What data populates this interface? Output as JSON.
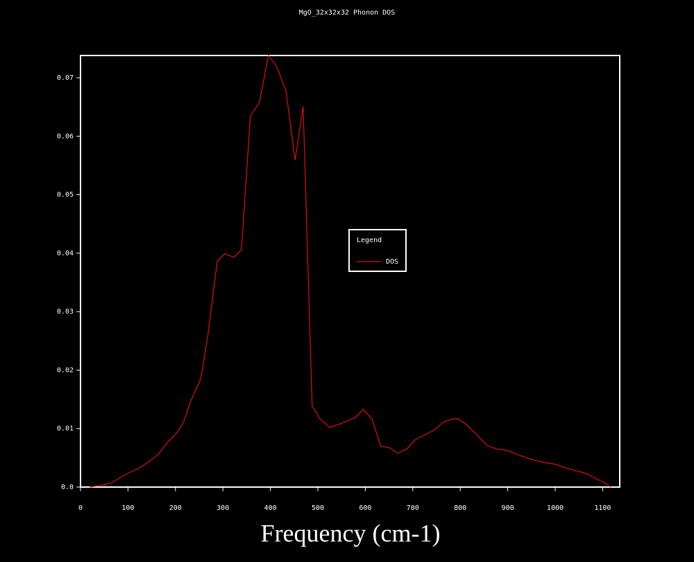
{
  "chart_data": {
    "type": "line",
    "title": "MgO_32x32x32 Phonon DOS",
    "x_label": "Frequency (cm-1)",
    "legend_title": "Legend",
    "legend_position": "center",
    "xlim": [
      0,
      1136
    ],
    "ylim": [
      0,
      0.0738
    ],
    "xticks": [
      0,
      100,
      200,
      300,
      400,
      500,
      600,
      700,
      800,
      900,
      1000,
      1100
    ],
    "yticks": [
      {
        "value": 0,
        "label": "0.0"
      },
      0.01,
      0.02,
      0.03,
      0.04,
      0.05,
      0.06,
      0.07
    ],
    "x": [
      20,
      50,
      64,
      98,
      123,
      145,
      164,
      181,
      205,
      218,
      232,
      253,
      269,
      288,
      304,
      323,
      339,
      358,
      377,
      396,
      413,
      433,
      452,
      469,
      488,
      504,
      525,
      550,
      579,
      596,
      615,
      632,
      649,
      668,
      687,
      705,
      725,
      744,
      763,
      781,
      795,
      813,
      833,
      857,
      877,
      898,
      920,
      939,
      956,
      978,
      1000,
      1022,
      1044,
      1066,
      1085,
      1102,
      1117
    ],
    "series": [
      {
        "name": "DOS",
        "color": "#e01010",
        "values": [
          0,
          0.0004,
          0.0007,
          0.0023,
          0.0032,
          0.0044,
          0.0056,
          0.0074,
          0.0095,
          0.0113,
          0.0147,
          0.0184,
          0.0263,
          0.0386,
          0.0399,
          0.0393,
          0.0406,
          0.0635,
          0.0658,
          0.0738,
          0.072,
          0.0677,
          0.0559,
          0.0651,
          0.0139,
          0.0117,
          0.0102,
          0.0109,
          0.0119,
          0.0133,
          0.0115,
          0.007,
          0.0068,
          0.0058,
          0.0065,
          0.0081,
          0.0089,
          0.0097,
          0.011,
          0.0116,
          0.0117,
          0.0107,
          0.0091,
          0.0071,
          0.0065,
          0.0063,
          0.0056,
          0.005,
          0.0046,
          0.0042,
          0.0039,
          0.0033,
          0.0028,
          0.0023,
          0.0015,
          0.0008,
          0
        ]
      }
    ]
  }
}
